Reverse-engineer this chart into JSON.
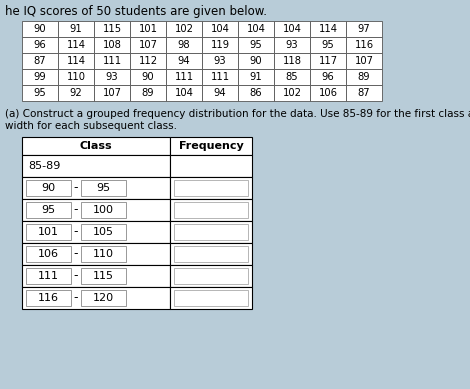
{
  "title": "he IQ scores of 50 students are given below.",
  "data_grid": [
    [
      90,
      91,
      115,
      101,
      102,
      104,
      104,
      104,
      114,
      97
    ],
    [
      96,
      114,
      108,
      107,
      98,
      119,
      95,
      93,
      95,
      116
    ],
    [
      87,
      114,
      111,
      112,
      94,
      93,
      90,
      118,
      117,
      107
    ],
    [
      99,
      110,
      93,
      90,
      111,
      111,
      91,
      85,
      96,
      89
    ],
    [
      95,
      92,
      107,
      89,
      104,
      94,
      86,
      102,
      106,
      87
    ]
  ],
  "question_line1": "(a) Construct a grouped frequency distribution for the data. Use 85-89 for the first class a",
  "question_line2": "width for each subsequent class.",
  "col_header": "Class",
  "freq_header": "Frequency",
  "row0_label": "85-89",
  "rows": [
    {
      "left": "90",
      "right": "95"
    },
    {
      "left": "95",
      "right": "100"
    },
    {
      "left": "101",
      "right": "105"
    },
    {
      "left": "106",
      "right": "110"
    },
    {
      "left": "111",
      "right": "115"
    },
    {
      "left": "116",
      "right": "120"
    }
  ],
  "bg_color": "#b8ccd8",
  "cell_bg": "#ffffff",
  "grid_edge": "#555555",
  "sub_box_edge": "#888888",
  "freq_box_edge": "#999999"
}
